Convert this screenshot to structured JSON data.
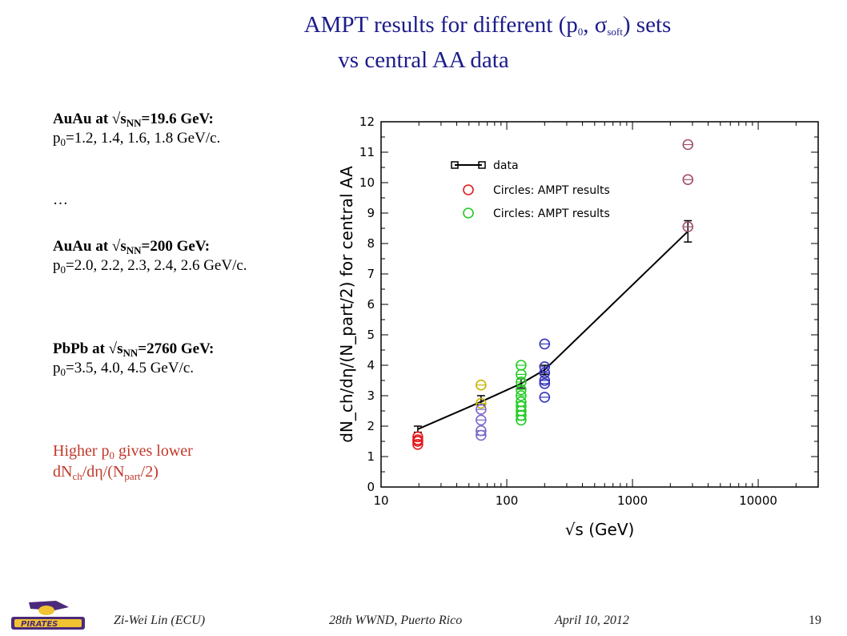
{
  "slide": {
    "title_pre": "AMPT results for different (p",
    "title_p_sub": "0",
    "title_mid": ", σ",
    "title_sigma_sub": "soft",
    "title_post": ") sets",
    "title_line2": "vs central AA data",
    "blocks": {
      "auau196": {
        "head_pre": "AuAu at √s",
        "head_sub": "NN",
        "head_post": "=19.6 GeV:",
        "p_pre": "p",
        "p_sub": "0",
        "p_post": "=1.2, 1.4, 1.6, 1.8 GeV/c."
      },
      "ellipsis": "…",
      "auau200": {
        "head_pre": "AuAu at √s",
        "head_sub": "NN",
        "head_post": "=200 GeV:",
        "p_pre": "p",
        "p_sub": "0",
        "p_post": "=2.0, 2.2, 2.3, 2.4, 2.6 GeV/c."
      },
      "pbpb": {
        "head_pre": "PbPb at √s",
        "head_sub": "NN",
        "head_post": "=2760 GeV:",
        "p_pre": "p",
        "p_sub": "0",
        "p_post": "=3.5, 4.0, 4.5 GeV/c."
      },
      "note": {
        "l1_pre": "Higher p",
        "l1_sub": "0",
        "l1_post": " gives lower",
        "l2_a": "dN",
        "l2_sub1": "ch",
        "l2_b": "/dη/(N",
        "l2_sub2": "part",
        "l2_c": "/2)"
      }
    },
    "footer": {
      "author": "Zi-Wei Lin (ECU)",
      "conf": "28th WWND, Puerto Rico",
      "date": "April 10, 2012",
      "page": "19"
    },
    "colors": {
      "title": "#1c1c8c",
      "note": "#c0392b"
    }
  },
  "chart_data": {
    "type": "scatter",
    "xlabel": "√s (GeV)",
    "ylabel": "dN_ch/dη/(N_part/2) for central AA",
    "xscale": "log",
    "xlim": [
      10,
      30000
    ],
    "ylim": [
      0,
      12
    ],
    "xticks": [
      "10",
      "100",
      "1000",
      "10000"
    ],
    "yticks": [
      "0",
      "1",
      "2",
      "3",
      "4",
      "5",
      "6",
      "7",
      "8",
      "9",
      "10",
      "11",
      "12"
    ],
    "legend": {
      "position": "top-left",
      "entries": [
        "data",
        "Circles: AMPT results",
        "Circles: AMPT results"
      ]
    },
    "data_line": {
      "x": [
        19.6,
        62.4,
        130,
        200,
        2760
      ],
      "y": [
        1.9,
        2.8,
        3.4,
        3.85,
        8.4
      ]
    },
    "data_points": {
      "x": [
        19.6,
        62.4,
        130,
        200,
        2760
      ],
      "y": [
        1.9,
        2.85,
        3.4,
        3.85,
        8.4
      ],
      "err": [
        0.1,
        0.15,
        0.15,
        0.15,
        0.35
      ]
    },
    "series": [
      {
        "color": "#e31a1c",
        "x": [
          19.6,
          19.6,
          19.6,
          19.6
        ],
        "y": [
          1.65,
          1.55,
          1.5,
          1.4
        ]
      },
      {
        "color": "#c8b400",
        "x": [
          62.4,
          62.4
        ],
        "y": [
          3.35,
          2.75
        ]
      },
      {
        "color": "#7b68c8",
        "x": [
          62.4,
          62.4,
          62.4,
          62.4
        ],
        "y": [
          2.55,
          2.2,
          1.85,
          1.7
        ]
      },
      {
        "color": "#22cc22",
        "x": [
          130,
          130,
          130,
          130,
          130,
          130,
          130,
          130,
          130,
          130
        ],
        "y": [
          4.0,
          3.7,
          3.45,
          3.2,
          3.0,
          2.8,
          2.65,
          2.5,
          2.35,
          2.2
        ]
      },
      {
        "color": "#3333bb",
        "x": [
          200,
          200,
          200,
          200,
          200,
          200
        ],
        "y": [
          4.7,
          3.95,
          3.75,
          3.5,
          3.4,
          2.95
        ]
      },
      {
        "color": "#a05070",
        "x": [
          2760,
          2760,
          2760
        ],
        "y": [
          11.25,
          10.1,
          8.55
        ]
      }
    ]
  }
}
